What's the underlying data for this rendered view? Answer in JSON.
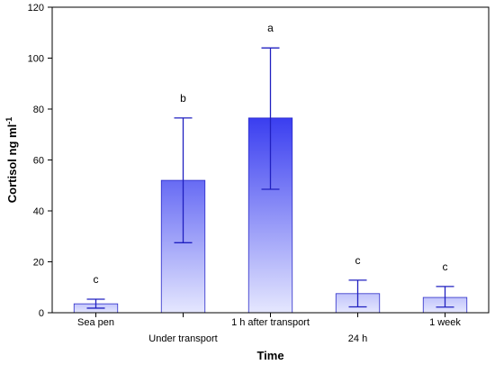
{
  "chart_data": {
    "type": "bar",
    "xlabel": "Time",
    "ylabel": "Cortisol ng ml",
    "ylabel_superscript": "-1",
    "ylim": [
      0,
      120
    ],
    "yticks": [
      0,
      20,
      40,
      60,
      80,
      100,
      120
    ],
    "categories": [
      "Sea pen",
      "Under transport",
      "1 h after transport",
      "24 h",
      "1 week"
    ],
    "values": [
      3.5,
      52,
      76.5,
      7.5,
      6
    ],
    "error_upper": [
      5.3,
      76.5,
      104,
      12.8,
      10.3
    ],
    "error_lower": [
      1.8,
      27.5,
      48.5,
      2.3,
      2.2
    ],
    "significance_letters": [
      "c",
      "b",
      "a",
      "c",
      "c"
    ],
    "bar_intensity": [
      0.25,
      0.75,
      1.0,
      0.25,
      0.25
    ],
    "colors": {
      "bar_dark": "#3a3ef0",
      "bar_light": "#eef0ff",
      "edge": "#2b2bc8",
      "error": "#2020c0"
    }
  }
}
